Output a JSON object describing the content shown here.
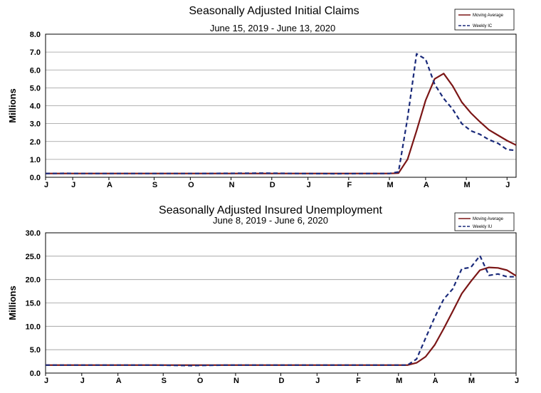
{
  "chart_data": [
    {
      "type": "line",
      "title": "Seasonally Adjusted Initial Claims",
      "subtitle": "June 15, 2019 - June 13, 2020",
      "ylabel": "Millions",
      "ylim": [
        0,
        8
      ],
      "yticks": [
        "0.0",
        "1.0",
        "2.0",
        "3.0",
        "4.0",
        "5.0",
        "6.0",
        "7.0",
        "8.0"
      ],
      "xlim": [
        0,
        52
      ],
      "xticks": [
        {
          "label": "J",
          "x": 0
        },
        {
          "label": "J",
          "x": 3
        },
        {
          "label": "A",
          "x": 7
        },
        {
          "label": "S",
          "x": 12
        },
        {
          "label": "O",
          "x": 16
        },
        {
          "label": "N",
          "x": 20.5
        },
        {
          "label": "D",
          "x": 25
        },
        {
          "label": "J",
          "x": 29
        },
        {
          "label": "F",
          "x": 33.5
        },
        {
          "label": "M",
          "x": 38
        },
        {
          "label": "A",
          "x": 42
        },
        {
          "label": "M",
          "x": 46.5
        },
        {
          "label": "J",
          "x": 51
        }
      ],
      "grid": true,
      "legend_position": "top-right",
      "series": [
        {
          "name": "Moving Average",
          "color": "#7b1616",
          "style": "solid",
          "points": [
            [
              0,
              0.21
            ],
            [
              2,
              0.21
            ],
            [
              4,
              0.21
            ],
            [
              8,
              0.21
            ],
            [
              12,
              0.21
            ],
            [
              16,
              0.21
            ],
            [
              20,
              0.21
            ],
            [
              24,
              0.21
            ],
            [
              28,
              0.21
            ],
            [
              32,
              0.21
            ],
            [
              36,
              0.21
            ],
            [
              38,
              0.21
            ],
            [
              39,
              0.23
            ],
            [
              40,
              1.0
            ],
            [
              41,
              2.6
            ],
            [
              42,
              4.3
            ],
            [
              43,
              5.5
            ],
            [
              44,
              5.8
            ],
            [
              45,
              5.1
            ],
            [
              46,
              4.2
            ],
            [
              47,
              3.6
            ],
            [
              48,
              3.1
            ],
            [
              49,
              2.65
            ],
            [
              50,
              2.35
            ],
            [
              51,
              2.05
            ],
            [
              52,
              1.8
            ]
          ]
        },
        {
          "name": "Weekly IC",
          "color": "#1a2a7a",
          "style": "dashed",
          "points": [
            [
              0,
              0.21
            ],
            [
              2,
              0.22
            ],
            [
              4,
              0.21
            ],
            [
              8,
              0.21
            ],
            [
              12,
              0.21
            ],
            [
              16,
              0.21
            ],
            [
              20,
              0.22
            ],
            [
              24,
              0.23
            ],
            [
              28,
              0.21
            ],
            [
              32,
              0.2
            ],
            [
              36,
              0.21
            ],
            [
              38,
              0.21
            ],
            [
              39,
              0.3
            ],
            [
              40,
              3.3
            ],
            [
              41,
              6.9
            ],
            [
              42,
              6.6
            ],
            [
              43,
              5.2
            ],
            [
              44,
              4.4
            ],
            [
              45,
              3.8
            ],
            [
              46,
              3.0
            ],
            [
              47,
              2.6
            ],
            [
              48,
              2.4
            ],
            [
              49,
              2.1
            ],
            [
              50,
              1.9
            ],
            [
              51,
              1.55
            ],
            [
              52,
              1.5
            ]
          ]
        }
      ]
    },
    {
      "type": "line",
      "title": "Seasonally Adjusted Insured Unemployment",
      "subtitle": "June 8, 2019 - June 6, 2020",
      "ylabel": "Millions",
      "ylim": [
        0,
        30
      ],
      "yticks": [
        "0.0",
        "5.0",
        "10.0",
        "15.0",
        "20.0",
        "25.0",
        "30.0"
      ],
      "xlim": [
        0,
        52
      ],
      "xticks": [
        {
          "label": "J",
          "x": 0
        },
        {
          "label": "J",
          "x": 4
        },
        {
          "label": "A",
          "x": 8
        },
        {
          "label": "S",
          "x": 13
        },
        {
          "label": "O",
          "x": 17
        },
        {
          "label": "N",
          "x": 21
        },
        {
          "label": "D",
          "x": 26
        },
        {
          "label": "J",
          "x": 30
        },
        {
          "label": "F",
          "x": 34.5
        },
        {
          "label": "M",
          "x": 39
        },
        {
          "label": "A",
          "x": 43
        },
        {
          "label": "M",
          "x": 47
        },
        {
          "label": "J",
          "x": 52
        }
      ],
      "grid": true,
      "legend_position": "top-right",
      "series": [
        {
          "name": "Moving Average",
          "color": "#7b1616",
          "style": "solid",
          "points": [
            [
              0,
              1.7
            ],
            [
              4,
              1.7
            ],
            [
              8,
              1.7
            ],
            [
              12,
              1.7
            ],
            [
              16,
              1.7
            ],
            [
              20,
              1.7
            ],
            [
              24,
              1.7
            ],
            [
              28,
              1.7
            ],
            [
              32,
              1.7
            ],
            [
              36,
              1.7
            ],
            [
              40,
              1.7
            ],
            [
              41,
              2.2
            ],
            [
              42,
              3.5
            ],
            [
              43,
              6.0
            ],
            [
              44,
              9.5
            ],
            [
              45,
              13.2
            ],
            [
              46,
              17.0
            ],
            [
              47,
              19.6
            ],
            [
              48,
              22.0
            ],
            [
              49,
              22.6
            ],
            [
              50,
              22.5
            ],
            [
              51,
              22.0
            ],
            [
              52,
              20.8
            ]
          ]
        },
        {
          "name": "Weekly IU",
          "color": "#1a2a7a",
          "style": "dashed",
          "points": [
            [
              0,
              1.7
            ],
            [
              4,
              1.7
            ],
            [
              8,
              1.7
            ],
            [
              12,
              1.7
            ],
            [
              16,
              1.6
            ],
            [
              20,
              1.7
            ],
            [
              24,
              1.7
            ],
            [
              28,
              1.7
            ],
            [
              32,
              1.7
            ],
            [
              36,
              1.7
            ],
            [
              40,
              1.7
            ],
            [
              41,
              3.0
            ],
            [
              42,
              7.5
            ],
            [
              43,
              11.9
            ],
            [
              44,
              15.8
            ],
            [
              45,
              18.0
            ],
            [
              46,
              22.3
            ],
            [
              47,
              22.6
            ],
            [
              48,
              25.1
            ],
            [
              49,
              20.9
            ],
            [
              50,
              21.2
            ],
            [
              51,
              20.6
            ],
            [
              52,
              20.6
            ]
          ]
        }
      ]
    }
  ]
}
